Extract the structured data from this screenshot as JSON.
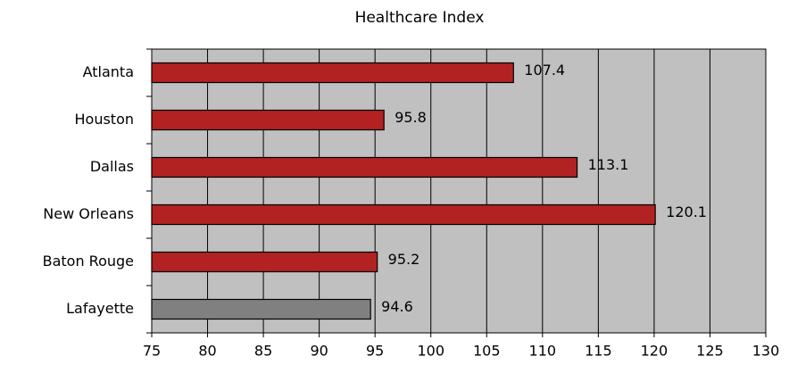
{
  "chart_data": {
    "type": "bar",
    "orientation": "horizontal",
    "title": "Healthcare Index",
    "categories": [
      "Atlanta",
      "Houston",
      "Dallas",
      "New Orleans",
      "Baton Rouge",
      "Lafayette"
    ],
    "values": [
      107.4,
      95.8,
      113.1,
      120.1,
      95.2,
      94.6
    ],
    "colors": [
      "#b22222",
      "#b22222",
      "#b22222",
      "#b22222",
      "#b22222",
      "#808080"
    ],
    "xlim": [
      75,
      130
    ],
    "xticks": [
      75,
      80,
      85,
      90,
      95,
      100,
      105,
      110,
      115,
      120,
      125,
      130
    ],
    "grid": true,
    "background": "#c0c0c0"
  }
}
